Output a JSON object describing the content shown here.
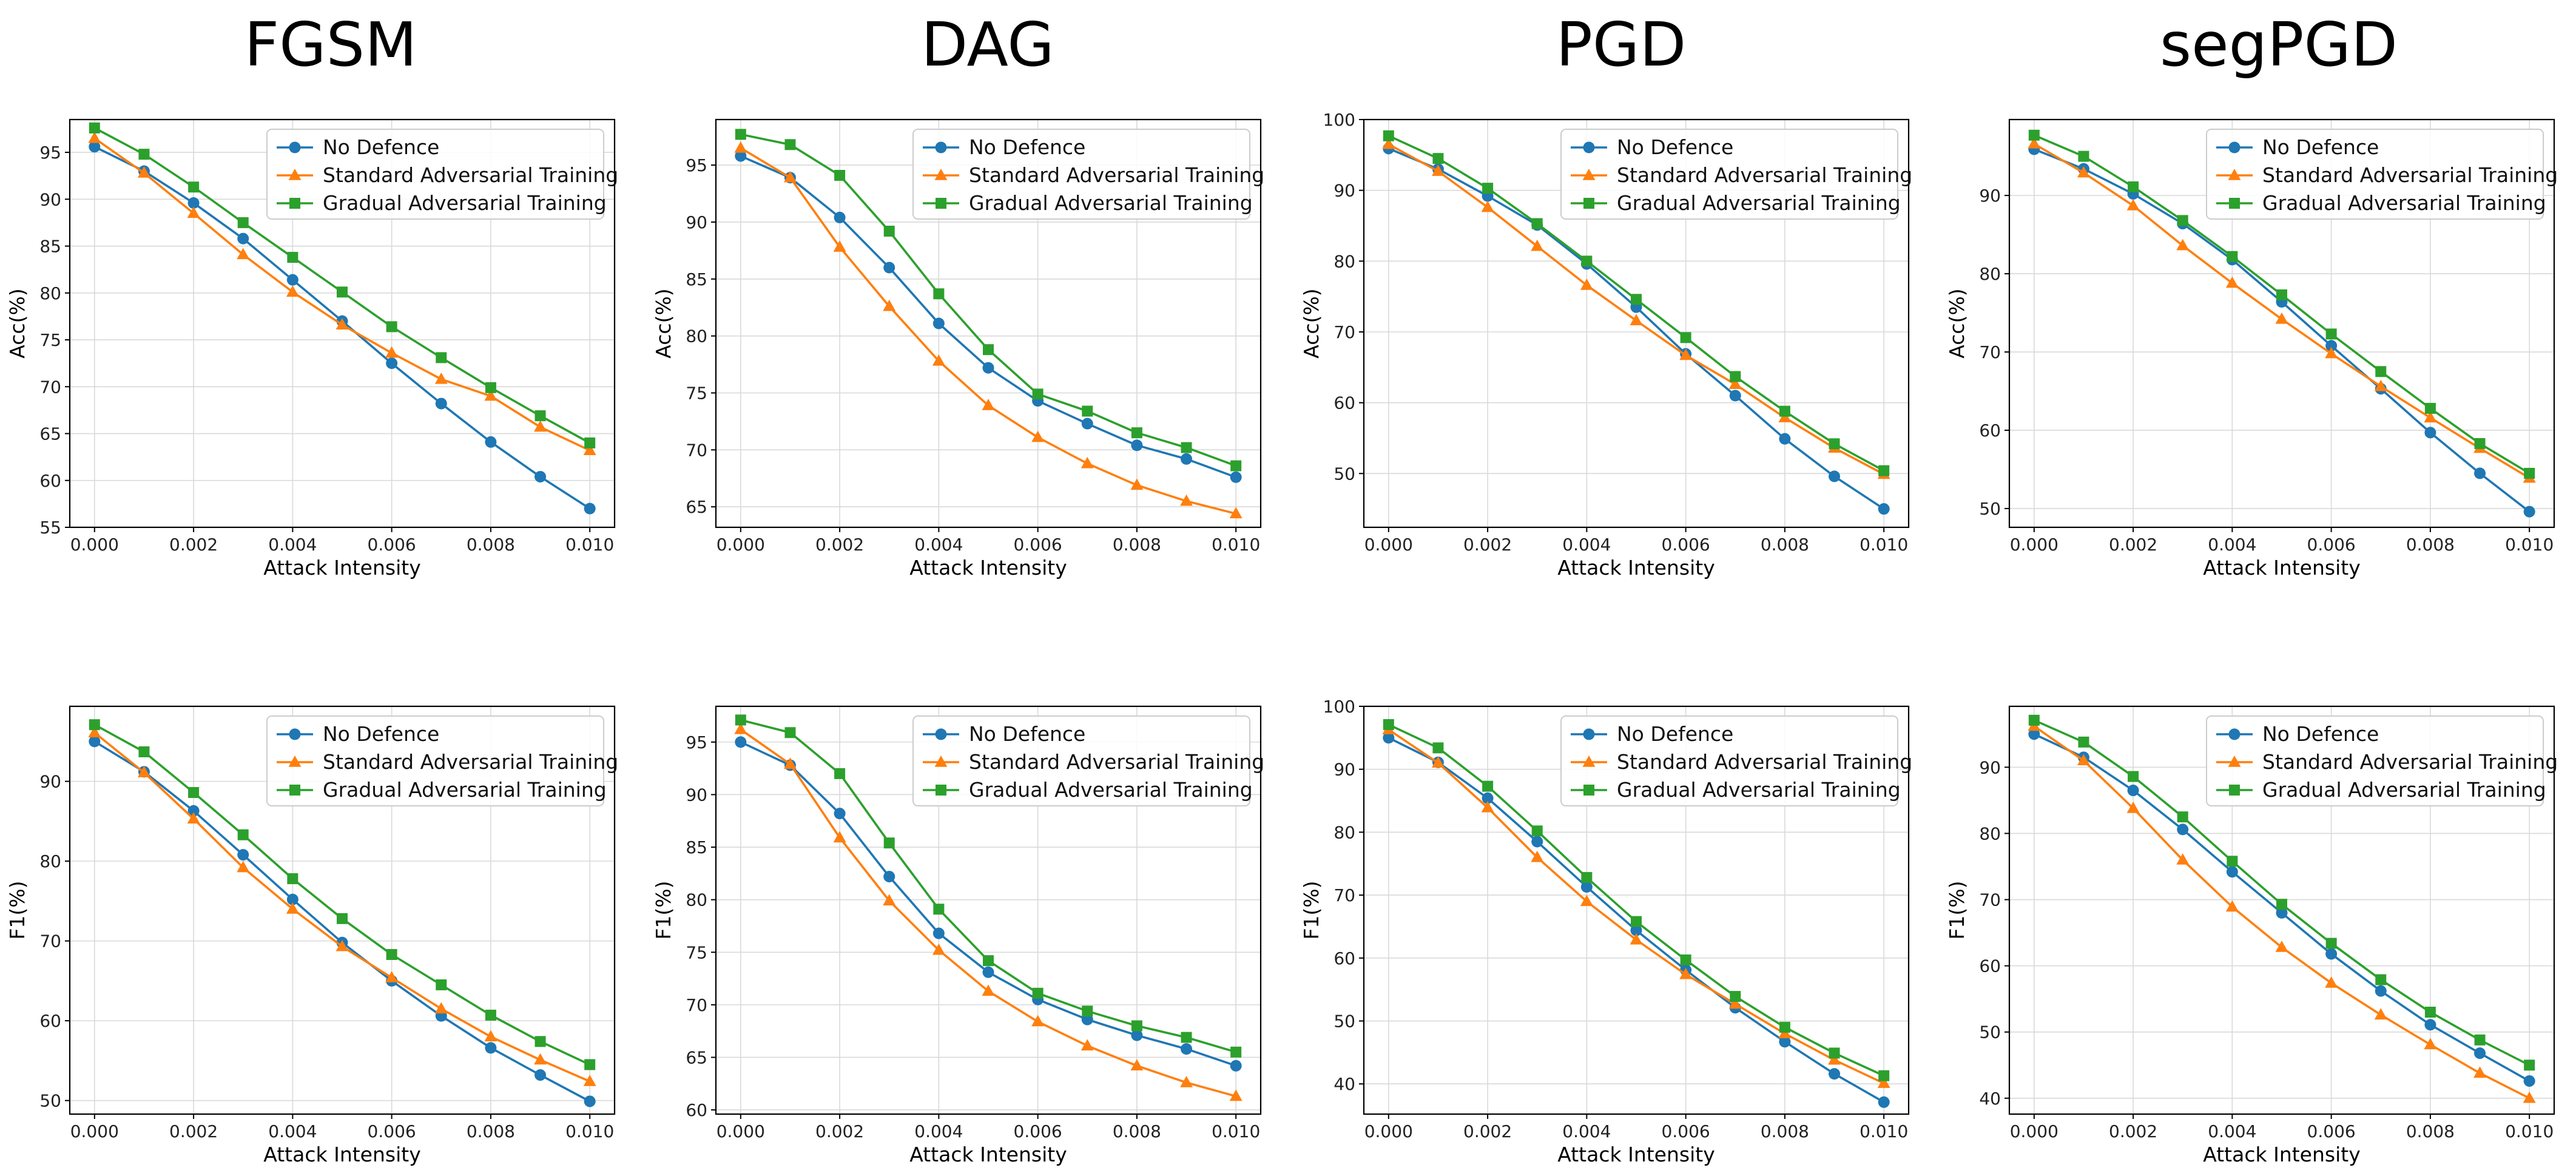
{
  "column_titles": [
    "FGSM",
    "DAG",
    "PGD",
    "segPGD"
  ],
  "legend": [
    "No Defence",
    "Standard Adversarial Training",
    "Gradual Adversarial Training"
  ],
  "colors": {
    "No Defence": "#1f77b4",
    "Standard Adversarial Training": "#ff7f0e",
    "Gradual Adversarial Training": "#2ca02c"
  },
  "markers": {
    "No Defence": "circle",
    "Standard Adversarial Training": "triangle",
    "Gradual Adversarial Training": "square"
  },
  "chart_data": [
    {
      "type": "line",
      "title": "FGSM",
      "xlabel": "Attack Intensity",
      "ylabel": "Acc(%)",
      "xlim": [
        -0.0005,
        0.0105
      ],
      "ylim": [
        55,
        98.5
      ],
      "x_ticks": [
        0,
        0.002,
        0.004,
        0.006,
        0.008,
        0.01
      ],
      "x_tick_labels": [
        "0.000",
        "0.002",
        "0.004",
        "0.006",
        "0.008",
        "0.010"
      ],
      "y_ticks": [
        55,
        60,
        65,
        70,
        75,
        80,
        85,
        90,
        95
      ],
      "y_tick_labels": [
        "55",
        "60",
        "65",
        "70",
        "75",
        "80",
        "85",
        "90",
        "95"
      ],
      "grid": true,
      "legend_position": "top-right",
      "x": [
        0,
        0.001,
        0.002,
        0.003,
        0.004,
        0.005,
        0.006,
        0.007,
        0.008,
        0.009,
        0.01
      ],
      "series": [
        {
          "name": "No Defence",
          "values": [
            95.6,
            93.0,
            89.6,
            85.8,
            81.4,
            77.0,
            72.5,
            68.2,
            64.1,
            60.4,
            57.0
          ]
        },
        {
          "name": "Standard Adversarial Training",
          "values": [
            96.5,
            92.8,
            88.5,
            84.1,
            80.1,
            76.6,
            73.6,
            70.8,
            69.0,
            65.7,
            63.2
          ]
        },
        {
          "name": "Gradual Adversarial Training",
          "values": [
            97.6,
            94.8,
            91.3,
            87.5,
            83.8,
            80.1,
            76.4,
            73.1,
            69.9,
            66.9,
            64.0
          ]
        }
      ]
    },
    {
      "type": "line",
      "title": "DAG",
      "xlabel": "Attack Intensity",
      "ylabel": "Acc(%)",
      "xlim": [
        -0.0005,
        0.0105
      ],
      "ylim": [
        63.2,
        99
      ],
      "x_ticks": [
        0,
        0.002,
        0.004,
        0.006,
        0.008,
        0.01
      ],
      "x_tick_labels": [
        "0.000",
        "0.002",
        "0.004",
        "0.006",
        "0.008",
        "0.010"
      ],
      "y_ticks": [
        65,
        70,
        75,
        80,
        85,
        90,
        95
      ],
      "y_tick_labels": [
        "65",
        "70",
        "75",
        "80",
        "85",
        "90",
        "95"
      ],
      "grid": true,
      "legend_position": "top-right",
      "x": [
        0,
        0.001,
        0.002,
        0.003,
        0.004,
        0.005,
        0.006,
        0.007,
        0.008,
        0.009,
        0.01
      ],
      "series": [
        {
          "name": "No Defence",
          "values": [
            95.8,
            93.9,
            90.4,
            86.0,
            81.1,
            77.2,
            74.3,
            72.3,
            70.4,
            69.2,
            67.6
          ]
        },
        {
          "name": "Standard Adversarial Training",
          "values": [
            96.5,
            93.9,
            87.8,
            82.6,
            77.8,
            73.9,
            71.1,
            68.8,
            66.9,
            65.5,
            64.4
          ]
        },
        {
          "name": "Gradual Adversarial Training",
          "values": [
            97.7,
            96.8,
            94.1,
            89.2,
            83.7,
            78.8,
            74.9,
            73.4,
            71.5,
            70.2,
            68.6
          ]
        }
      ]
    },
    {
      "type": "line",
      "title": "PGD",
      "xlabel": "Attack Intensity",
      "ylabel": "Acc(%)",
      "xlim": [
        -0.0005,
        0.0105
      ],
      "ylim": [
        42.4,
        100
      ],
      "x_ticks": [
        0,
        0.002,
        0.004,
        0.006,
        0.008,
        0.01
      ],
      "x_tick_labels": [
        "0.000",
        "0.002",
        "0.004",
        "0.006",
        "0.008",
        "0.010"
      ],
      "y_ticks": [
        50,
        60,
        70,
        80,
        90,
        100
      ],
      "y_tick_labels": [
        "50",
        "60",
        "70",
        "80",
        "90",
        "100"
      ],
      "grid": true,
      "legend_position": "top-right",
      "x": [
        0,
        0.001,
        0.002,
        0.003,
        0.004,
        0.005,
        0.006,
        0.007,
        0.008,
        0.009,
        0.01
      ],
      "series": [
        {
          "name": "No Defence",
          "values": [
            95.9,
            93.0,
            89.2,
            85.1,
            79.6,
            73.5,
            66.9,
            61.0,
            54.9,
            49.6,
            45.0
          ]
        },
        {
          "name": "Standard Adversarial Training",
          "values": [
            96.5,
            92.7,
            87.6,
            82.1,
            76.6,
            71.6,
            66.7,
            62.6,
            57.9,
            53.6,
            49.9
          ]
        },
        {
          "name": "Gradual Adversarial Training",
          "values": [
            97.7,
            94.5,
            90.3,
            85.3,
            80.0,
            74.6,
            69.2,
            63.7,
            58.8,
            54.2,
            50.4
          ]
        }
      ]
    },
    {
      "type": "line",
      "title": "segPGD",
      "xlabel": "Attack Intensity",
      "ylabel": "Acc(%)",
      "xlim": [
        -0.0005,
        0.0105
      ],
      "ylim": [
        47.6,
        99.7
      ],
      "x_ticks": [
        0,
        0.002,
        0.004,
        0.006,
        0.008,
        0.01
      ],
      "x_tick_labels": [
        "0.000",
        "0.002",
        "0.004",
        "0.006",
        "0.008",
        "0.010"
      ],
      "y_ticks": [
        50,
        60,
        70,
        80,
        90
      ],
      "y_tick_labels": [
        "50",
        "60",
        "70",
        "80",
        "90"
      ],
      "grid": true,
      "legend_position": "top-right",
      "x": [
        0,
        0.001,
        0.002,
        0.003,
        0.004,
        0.005,
        0.006,
        0.007,
        0.008,
        0.009,
        0.01
      ],
      "series": [
        {
          "name": "No Defence",
          "values": [
            95.9,
            93.4,
            90.2,
            86.4,
            81.8,
            76.4,
            70.8,
            65.3,
            59.7,
            54.5,
            49.6
          ]
        },
        {
          "name": "Standard Adversarial Training",
          "values": [
            96.6,
            92.9,
            88.7,
            83.6,
            78.8,
            74.2,
            69.8,
            65.6,
            61.6,
            57.7,
            53.9
          ]
        },
        {
          "name": "Gradual Adversarial Training",
          "values": [
            97.7,
            95.0,
            91.1,
            86.8,
            82.2,
            77.3,
            72.3,
            67.5,
            62.8,
            58.3,
            54.5
          ]
        }
      ]
    },
    {
      "type": "line",
      "title": "FGSM",
      "xlabel": "Attack Intensity",
      "ylabel": "F1(%)",
      "xlim": [
        -0.0005,
        0.0105
      ],
      "ylim": [
        48.3,
        99.4
      ],
      "x_ticks": [
        0,
        0.002,
        0.004,
        0.006,
        0.008,
        0.01
      ],
      "x_tick_labels": [
        "0.000",
        "0.002",
        "0.004",
        "0.006",
        "0.008",
        "0.010"
      ],
      "y_ticks": [
        50,
        60,
        70,
        80,
        90
      ],
      "y_tick_labels": [
        "50",
        "60",
        "70",
        "80",
        "90"
      ],
      "grid": true,
      "legend_position": "top-right",
      "x": [
        0,
        0.001,
        0.002,
        0.003,
        0.004,
        0.005,
        0.006,
        0.007,
        0.008,
        0.009,
        0.01
      ],
      "series": [
        {
          "name": "No Defence",
          "values": [
            95.0,
            91.2,
            86.3,
            80.8,
            75.2,
            69.8,
            65.0,
            60.6,
            56.6,
            53.2,
            49.9
          ]
        },
        {
          "name": "Standard Adversarial Training",
          "values": [
            96.1,
            91.1,
            85.3,
            79.2,
            74.0,
            69.3,
            65.4,
            61.5,
            58.0,
            55.1,
            52.4
          ]
        },
        {
          "name": "Gradual Adversarial Training",
          "values": [
            97.1,
            93.7,
            88.6,
            83.3,
            77.8,
            72.8,
            68.3,
            64.5,
            60.7,
            57.4,
            54.5
          ]
        }
      ]
    },
    {
      "type": "line",
      "title": "DAG",
      "xlabel": "Attack Intensity",
      "ylabel": "F1(%)",
      "xlim": [
        -0.0005,
        0.0105
      ],
      "ylim": [
        59.6,
        98.4
      ],
      "x_ticks": [
        0,
        0.002,
        0.004,
        0.006,
        0.008,
        0.01
      ],
      "x_tick_labels": [
        "0.000",
        "0.002",
        "0.004",
        "0.006",
        "0.008",
        "0.010"
      ],
      "y_ticks": [
        60,
        65,
        70,
        75,
        80,
        85,
        90,
        95
      ],
      "y_tick_labels": [
        "60",
        "65",
        "70",
        "75",
        "80",
        "85",
        "90",
        "95"
      ],
      "grid": true,
      "legend_position": "top-right",
      "x": [
        0,
        0.001,
        0.002,
        0.003,
        0.004,
        0.005,
        0.006,
        0.007,
        0.008,
        0.009,
        0.01
      ],
      "series": [
        {
          "name": "No Defence",
          "values": [
            95.0,
            92.8,
            88.2,
            82.2,
            76.8,
            73.1,
            70.5,
            68.6,
            67.1,
            65.8,
            64.2
          ]
        },
        {
          "name": "Standard Adversarial Training",
          "values": [
            96.2,
            92.9,
            85.9,
            79.9,
            75.2,
            71.3,
            68.4,
            66.1,
            64.2,
            62.6,
            61.3
          ]
        },
        {
          "name": "Gradual Adversarial Training",
          "values": [
            97.1,
            95.9,
            92.0,
            85.4,
            79.1,
            74.2,
            71.1,
            69.4,
            68.0,
            66.9,
            65.5
          ]
        }
      ]
    },
    {
      "type": "line",
      "title": "PGD",
      "xlabel": "Attack Intensity",
      "ylabel": "F1(%)",
      "xlim": [
        -0.0005,
        0.0105
      ],
      "ylim": [
        35.2,
        100
      ],
      "x_ticks": [
        0,
        0.002,
        0.004,
        0.006,
        0.008,
        0.01
      ],
      "x_tick_labels": [
        "0.000",
        "0.002",
        "0.004",
        "0.006",
        "0.008",
        "0.010"
      ],
      "y_ticks": [
        40,
        50,
        60,
        70,
        80,
        90,
        100
      ],
      "y_tick_labels": [
        "40",
        "50",
        "60",
        "70",
        "80",
        "90",
        "100"
      ],
      "grid": true,
      "legend_position": "top-right",
      "x": [
        0,
        0.001,
        0.002,
        0.003,
        0.004,
        0.005,
        0.006,
        0.007,
        0.008,
        0.009,
        0.01
      ],
      "series": [
        {
          "name": "No Defence",
          "values": [
            95.0,
            91.1,
            85.4,
            78.5,
            71.3,
            64.4,
            58.1,
            52.1,
            46.7,
            41.6,
            37.1
          ]
        },
        {
          "name": "Standard Adversarial Training",
          "values": [
            96.3,
            91.0,
            83.9,
            76.0,
            69.0,
            62.9,
            57.4,
            52.7,
            48.0,
            43.8,
            40.1
          ]
        },
        {
          "name": "Gradual Adversarial Training",
          "values": [
            97.1,
            93.4,
            87.3,
            80.2,
            72.8,
            65.8,
            59.7,
            53.9,
            49.0,
            44.9,
            41.3
          ]
        }
      ]
    },
    {
      "type": "line",
      "title": "segPGD",
      "xlabel": "Attack Intensity",
      "ylabel": "F1(%)",
      "xlim": [
        -0.0005,
        0.0105
      ],
      "ylim": [
        37.6,
        99.2
      ],
      "x_ticks": [
        0,
        0.002,
        0.004,
        0.006,
        0.008,
        0.01
      ],
      "x_tick_labels": [
        "0.000",
        "0.002",
        "0.004",
        "0.006",
        "0.008",
        "0.010"
      ],
      "y_ticks": [
        40,
        50,
        60,
        70,
        80,
        90
      ],
      "y_tick_labels": [
        "40",
        "50",
        "60",
        "70",
        "80",
        "90"
      ],
      "grid": true,
      "legend_position": "top-right",
      "x": [
        0,
        0.001,
        0.002,
        0.003,
        0.004,
        0.005,
        0.006,
        0.007,
        0.008,
        0.009,
        0.01
      ],
      "series": [
        {
          "name": "No Defence",
          "values": [
            95.0,
            91.5,
            86.5,
            80.6,
            74.2,
            68.0,
            61.8,
            56.2,
            51.1,
            46.8,
            42.6
          ]
        },
        {
          "name": "Standard Adversarial Training",
          "values": [
            96.2,
            91.0,
            83.8,
            76.0,
            68.9,
            62.8,
            57.4,
            52.6,
            48.1,
            43.8,
            40.0
          ]
        },
        {
          "name": "Gradual Adversarial Training",
          "values": [
            97.1,
            93.8,
            88.6,
            82.5,
            75.8,
            69.3,
            63.4,
            57.9,
            53.0,
            48.8,
            45.0
          ]
        }
      ]
    }
  ]
}
